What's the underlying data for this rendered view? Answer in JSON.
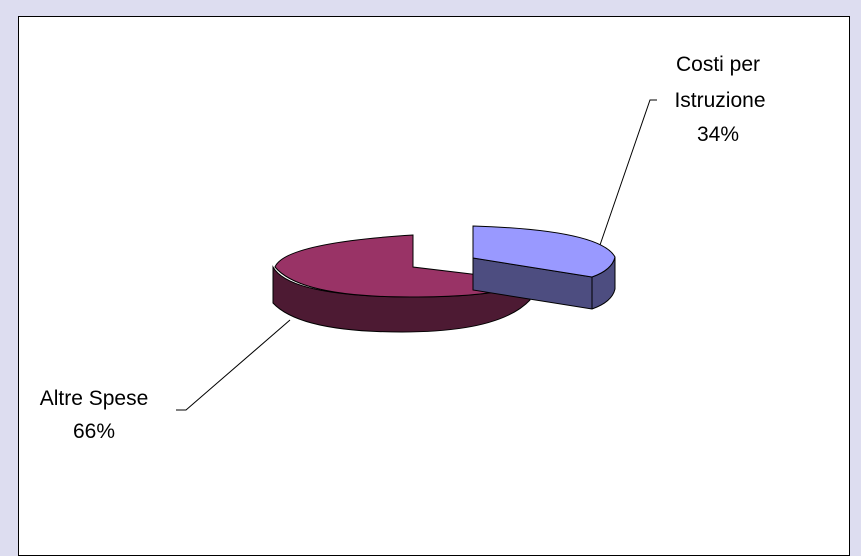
{
  "chart_data": {
    "type": "pie",
    "style": "3d-exploded",
    "title": "",
    "slices": [
      {
        "label_line1": "Costi per",
        "label_line2": "Istruzione",
        "percent_label": "34%",
        "value": 34,
        "color": "#9999ff",
        "side_color": "#4d4d80"
      },
      {
        "label_line1": "Altre Spese",
        "label_line2": "",
        "percent_label": "66%",
        "value": 66,
        "color": "#993366",
        "side_color": "#4d1a33"
      }
    ],
    "legend": "none"
  },
  "colors": {
    "background": "#ddddf0",
    "plot_area": "#ffffff",
    "border": "#000000"
  }
}
